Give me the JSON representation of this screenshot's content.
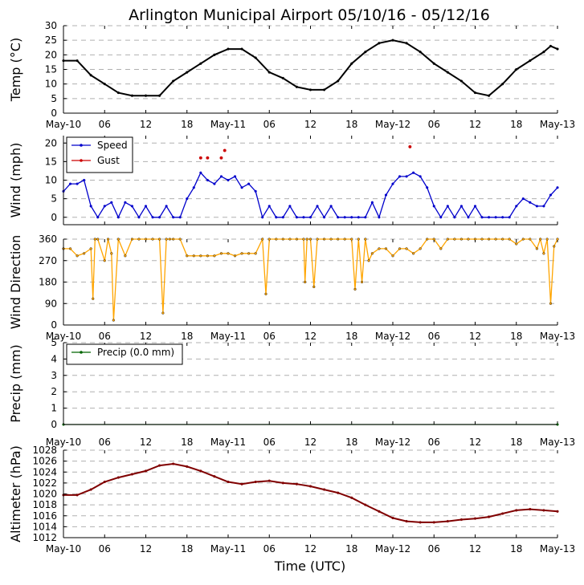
{
  "title": "Arlington Municipal Airport 05/10/16 - 05/12/16",
  "x_axis_label": "Time (UTC)",
  "x_tick_labels": [
    "May-10",
    "06",
    "12",
    "18",
    "May-11",
    "06",
    "12",
    "18",
    "May-12",
    "06",
    "12",
    "18",
    "May-13"
  ],
  "colors": {
    "temp": "#000000",
    "speed": "#0000cc",
    "gust": "#cc0000",
    "direction": "#ffa500",
    "precip": "#006400",
    "altimeter": "#800000"
  },
  "chart_data": [
    {
      "type": "line",
      "ylabel": "Temp ($^\\circ$C)",
      "ylabel_display": "Temp (°C)",
      "ylim": [
        0,
        30
      ],
      "yticks": [
        "0",
        "5",
        "10",
        "15",
        "20",
        "25",
        "30"
      ],
      "xlim_hours": [
        0,
        72
      ],
      "series": [
        {
          "name": "Temp",
          "x": [
            0,
            2,
            4,
            6,
            8,
            10,
            12,
            14,
            16,
            18,
            20,
            22,
            24,
            26,
            28,
            30,
            32,
            34,
            36,
            38,
            40,
            42,
            44,
            46,
            48,
            50,
            52,
            54,
            56,
            58,
            60,
            62,
            64,
            66,
            68,
            70,
            71,
            72
          ],
          "y": [
            18,
            18,
            13,
            10,
            7,
            6,
            6,
            6,
            11,
            14,
            17,
            20,
            22,
            22,
            19,
            14,
            12,
            9,
            8,
            8,
            11,
            17,
            21,
            24,
            25,
            24,
            21,
            17,
            14,
            11,
            7,
            6,
            10,
            15,
            18,
            21,
            23,
            22
          ]
        }
      ]
    },
    {
      "type": "line",
      "ylabel": "Wind (mph)",
      "ylim": [
        -2,
        22
      ],
      "yticks": [
        "0",
        "5",
        "10",
        "15",
        "20"
      ],
      "legend": [
        "Speed",
        "Gust"
      ],
      "series": [
        {
          "name": "Speed",
          "x": [
            0,
            1,
            2,
            3,
            4,
            5,
            6,
            7,
            8,
            9,
            10,
            11,
            12,
            13,
            14,
            15,
            16,
            17,
            18,
            19,
            20,
            21,
            22,
            23,
            24,
            25,
            26,
            27,
            28,
            29,
            30,
            31,
            32,
            33,
            34,
            35,
            36,
            37,
            38,
            39,
            40,
            41,
            42,
            43,
            44,
            45,
            46,
            47,
            48,
            49,
            50,
            51,
            52,
            53,
            54,
            55,
            56,
            57,
            58,
            59,
            60,
            61,
            62,
            63,
            64,
            65,
            66,
            67,
            68,
            69,
            70,
            71,
            72
          ],
          "y": [
            7,
            9,
            9,
            10,
            3,
            0,
            3,
            4,
            0,
            4,
            3,
            0,
            3,
            0,
            0,
            3,
            0,
            0,
            5,
            8,
            12,
            10,
            9,
            11,
            10,
            11,
            8,
            9,
            7,
            0,
            3,
            0,
            0,
            3,
            0,
            0,
            0,
            3,
            0,
            3,
            0,
            0,
            0,
            0,
            0,
            4,
            0,
            6,
            9,
            11,
            11,
            12,
            11,
            8,
            3,
            0,
            3,
            0,
            3,
            0,
            3,
            0,
            0,
            0,
            0,
            0,
            3,
            5,
            4,
            3,
            3,
            6,
            8
          ]
        },
        {
          "name": "Gust",
          "x": [
            20,
            21,
            23,
            23.5,
            50.5
          ],
          "y": [
            16,
            16,
            16,
            18,
            19
          ]
        }
      ]
    },
    {
      "type": "line",
      "ylabel": "Wind Direction",
      "ylim": [
        0,
        360
      ],
      "yticks": [
        "0",
        "90",
        "180",
        "270",
        "360"
      ],
      "series": [
        {
          "name": "Direction",
          "x": [
            0,
            1,
            2,
            3,
            4,
            4.3,
            4.6,
            5,
            6,
            6.5,
            7,
            7.3,
            8,
            9,
            10,
            11,
            12,
            13,
            14,
            14.5,
            15,
            15.5,
            16,
            17,
            18,
            19,
            20,
            21,
            22,
            23,
            24,
            25,
            26,
            27,
            28,
            29,
            29.5,
            30,
            31,
            32,
            33,
            34,
            35,
            35.2,
            35.5,
            36,
            36.5,
            37,
            38,
            39,
            40,
            41,
            42,
            42.5,
            43,
            43.5,
            44,
            44.5,
            45,
            46,
            47,
            48,
            49,
            50,
            51,
            52,
            53,
            54,
            55,
            56,
            57,
            58,
            59,
            60,
            61,
            62,
            63,
            64,
            65,
            66,
            67,
            68,
            69,
            69.5,
            70,
            70.5,
            71,
            71.5,
            72
          ],
          "y": [
            320,
            320,
            290,
            300,
            320,
            110,
            360,
            360,
            270,
            360,
            300,
            20,
            360,
            290,
            360,
            360,
            360,
            360,
            360,
            50,
            360,
            360,
            360,
            360,
            290,
            290,
            290,
            290,
            290,
            300,
            300,
            290,
            300,
            300,
            300,
            360,
            130,
            360,
            360,
            360,
            360,
            360,
            360,
            180,
            360,
            360,
            160,
            360,
            360,
            360,
            360,
            360,
            360,
            150,
            360,
            180,
            360,
            270,
            300,
            320,
            320,
            290,
            320,
            320,
            300,
            320,
            360,
            360,
            320,
            360,
            360,
            360,
            360,
            360,
            360,
            360,
            360,
            360,
            360,
            340,
            360,
            360,
            320,
            360,
            300,
            360,
            90,
            330,
            360
          ]
        }
      ]
    },
    {
      "type": "line",
      "ylabel": "Precip (mm)",
      "ylim": [
        0,
        5
      ],
      "yticks": [
        "0",
        "1",
        "2",
        "3",
        "4",
        "5"
      ],
      "legend": [
        "Precip (0.0 mm)"
      ],
      "series": [
        {
          "name": "Precip (0.0 mm)",
          "x": [
            0,
            72
          ],
          "y": [
            0,
            0
          ]
        }
      ]
    },
    {
      "type": "line",
      "ylabel": "Altimeter (hPa)",
      "ylim": [
        1012,
        1028
      ],
      "yticks": [
        "1012",
        "1014",
        "1016",
        "1018",
        "1020",
        "1022",
        "1024",
        "1026",
        "1028"
      ],
      "series": [
        {
          "name": "Altimeter",
          "x": [
            0,
            2,
            4,
            6,
            8,
            10,
            12,
            14,
            16,
            18,
            20,
            22,
            24,
            26,
            28,
            30,
            32,
            34,
            36,
            38,
            40,
            42,
            44,
            46,
            48,
            50,
            52,
            54,
            56,
            58,
            60,
            62,
            64,
            66,
            68,
            70,
            72
          ],
          "y": [
            1019.8,
            1019.8,
            1020.8,
            1022.2,
            1023.0,
            1023.6,
            1024.2,
            1025.2,
            1025.5,
            1025.0,
            1024.2,
            1023.2,
            1022.2,
            1021.8,
            1022.2,
            1022.4,
            1022.0,
            1021.8,
            1021.4,
            1020.8,
            1020.2,
            1019.3,
            1018.0,
            1016.8,
            1015.6,
            1015.0,
            1014.8,
            1014.8,
            1015.0,
            1015.3,
            1015.5,
            1015.8,
            1016.4,
            1017.0,
            1017.2,
            1017.0,
            1016.8
          ]
        }
      ]
    }
  ]
}
